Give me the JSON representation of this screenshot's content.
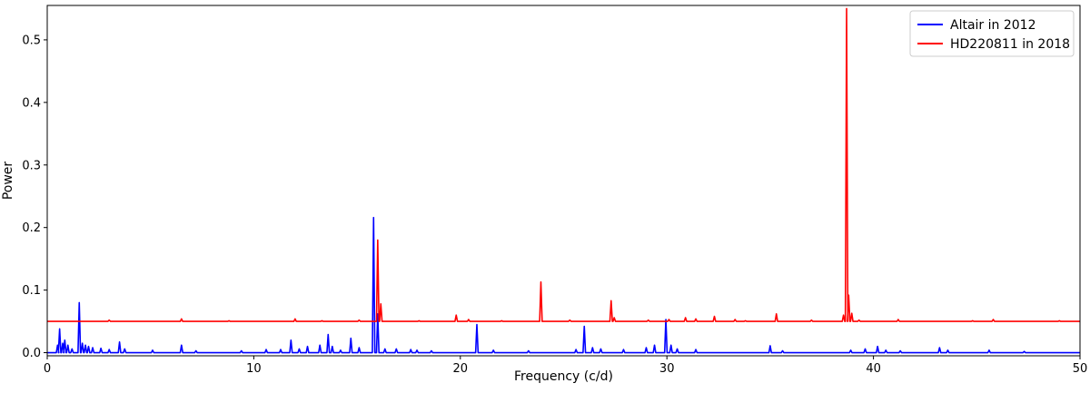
{
  "chart_data": {
    "type": "line",
    "title": "",
    "xlabel": "Frequency (c/d)",
    "ylabel": "Power",
    "xlim": [
      0,
      50
    ],
    "ylim": [
      -0.005,
      0.555
    ],
    "x_ticks": [
      0,
      10,
      20,
      30,
      40,
      50
    ],
    "y_ticks": [
      0.0,
      0.1,
      0.2,
      0.3,
      0.4,
      0.5
    ],
    "x_tick_labels": [
      "0",
      "10",
      "20",
      "30",
      "40",
      "50"
    ],
    "y_tick_labels": [
      "0.0",
      "0.1",
      "0.2",
      "0.3",
      "0.4",
      "0.5"
    ],
    "grid": false,
    "legend_position": "top-right",
    "series": [
      {
        "name": "Altair in 2012",
        "color": "#0000ff",
        "baseline": 0.0,
        "peaks": [
          [
            0.5,
            0.012
          ],
          [
            0.6,
            0.038
          ],
          [
            0.75,
            0.015
          ],
          [
            0.85,
            0.02
          ],
          [
            1.0,
            0.012
          ],
          [
            1.2,
            0.006
          ],
          [
            1.55,
            0.08
          ],
          [
            1.7,
            0.015
          ],
          [
            1.85,
            0.012
          ],
          [
            2.0,
            0.01
          ],
          [
            2.2,
            0.008
          ],
          [
            2.6,
            0.007
          ],
          [
            3.0,
            0.005
          ],
          [
            3.5,
            0.017
          ],
          [
            3.75,
            0.006
          ],
          [
            5.1,
            0.004
          ],
          [
            6.5,
            0.012
          ],
          [
            7.2,
            0.003
          ],
          [
            9.4,
            0.003
          ],
          [
            10.6,
            0.005
          ],
          [
            11.3,
            0.005
          ],
          [
            11.8,
            0.02
          ],
          [
            12.2,
            0.006
          ],
          [
            12.6,
            0.01
          ],
          [
            13.2,
            0.012
          ],
          [
            13.6,
            0.029
          ],
          [
            13.8,
            0.01
          ],
          [
            14.2,
            0.004
          ],
          [
            14.7,
            0.023
          ],
          [
            15.1,
            0.008
          ],
          [
            15.8,
            0.216
          ],
          [
            16.0,
            0.062
          ],
          [
            16.35,
            0.006
          ],
          [
            16.9,
            0.006
          ],
          [
            17.6,
            0.005
          ],
          [
            17.9,
            0.004
          ],
          [
            18.6,
            0.003
          ],
          [
            20.8,
            0.045
          ],
          [
            21.6,
            0.004
          ],
          [
            23.3,
            0.003
          ],
          [
            25.6,
            0.005
          ],
          [
            26.0,
            0.042
          ],
          [
            26.4,
            0.008
          ],
          [
            26.8,
            0.006
          ],
          [
            27.9,
            0.005
          ],
          [
            29.0,
            0.008
          ],
          [
            29.4,
            0.012
          ],
          [
            29.95,
            0.053
          ],
          [
            30.2,
            0.012
          ],
          [
            30.5,
            0.006
          ],
          [
            31.4,
            0.005
          ],
          [
            35.0,
            0.011
          ],
          [
            35.6,
            0.003
          ],
          [
            38.9,
            0.004
          ],
          [
            39.6,
            0.006
          ],
          [
            40.2,
            0.01
          ],
          [
            40.6,
            0.004
          ],
          [
            41.3,
            0.003
          ],
          [
            43.2,
            0.008
          ],
          [
            43.6,
            0.004
          ],
          [
            45.6,
            0.004
          ],
          [
            47.3,
            0.002
          ]
        ]
      },
      {
        "name": "HD220811 in 2018",
        "color": "#ff0000",
        "baseline": 0.05,
        "peaks": [
          [
            3.0,
            0.052
          ],
          [
            6.5,
            0.054
          ],
          [
            8.8,
            0.051
          ],
          [
            12.0,
            0.054
          ],
          [
            13.3,
            0.051
          ],
          [
            15.1,
            0.052
          ],
          [
            16.0,
            0.18
          ],
          [
            16.15,
            0.078
          ],
          [
            18.0,
            0.051
          ],
          [
            19.8,
            0.06
          ],
          [
            20.4,
            0.053
          ],
          [
            22.0,
            0.051
          ],
          [
            23.9,
            0.113
          ],
          [
            25.3,
            0.052
          ],
          [
            27.3,
            0.083
          ],
          [
            27.45,
            0.056
          ],
          [
            29.1,
            0.052
          ],
          [
            30.1,
            0.053
          ],
          [
            30.9,
            0.056
          ],
          [
            31.4,
            0.054
          ],
          [
            32.3,
            0.058
          ],
          [
            33.3,
            0.053
          ],
          [
            33.8,
            0.051
          ],
          [
            35.3,
            0.062
          ],
          [
            37.0,
            0.052
          ],
          [
            38.55,
            0.06
          ],
          [
            38.7,
            0.55
          ],
          [
            38.8,
            0.092
          ],
          [
            38.95,
            0.063
          ],
          [
            39.3,
            0.052
          ],
          [
            41.2,
            0.053
          ],
          [
            44.8,
            0.051
          ],
          [
            45.8,
            0.053
          ],
          [
            49.0,
            0.051
          ]
        ]
      }
    ]
  }
}
